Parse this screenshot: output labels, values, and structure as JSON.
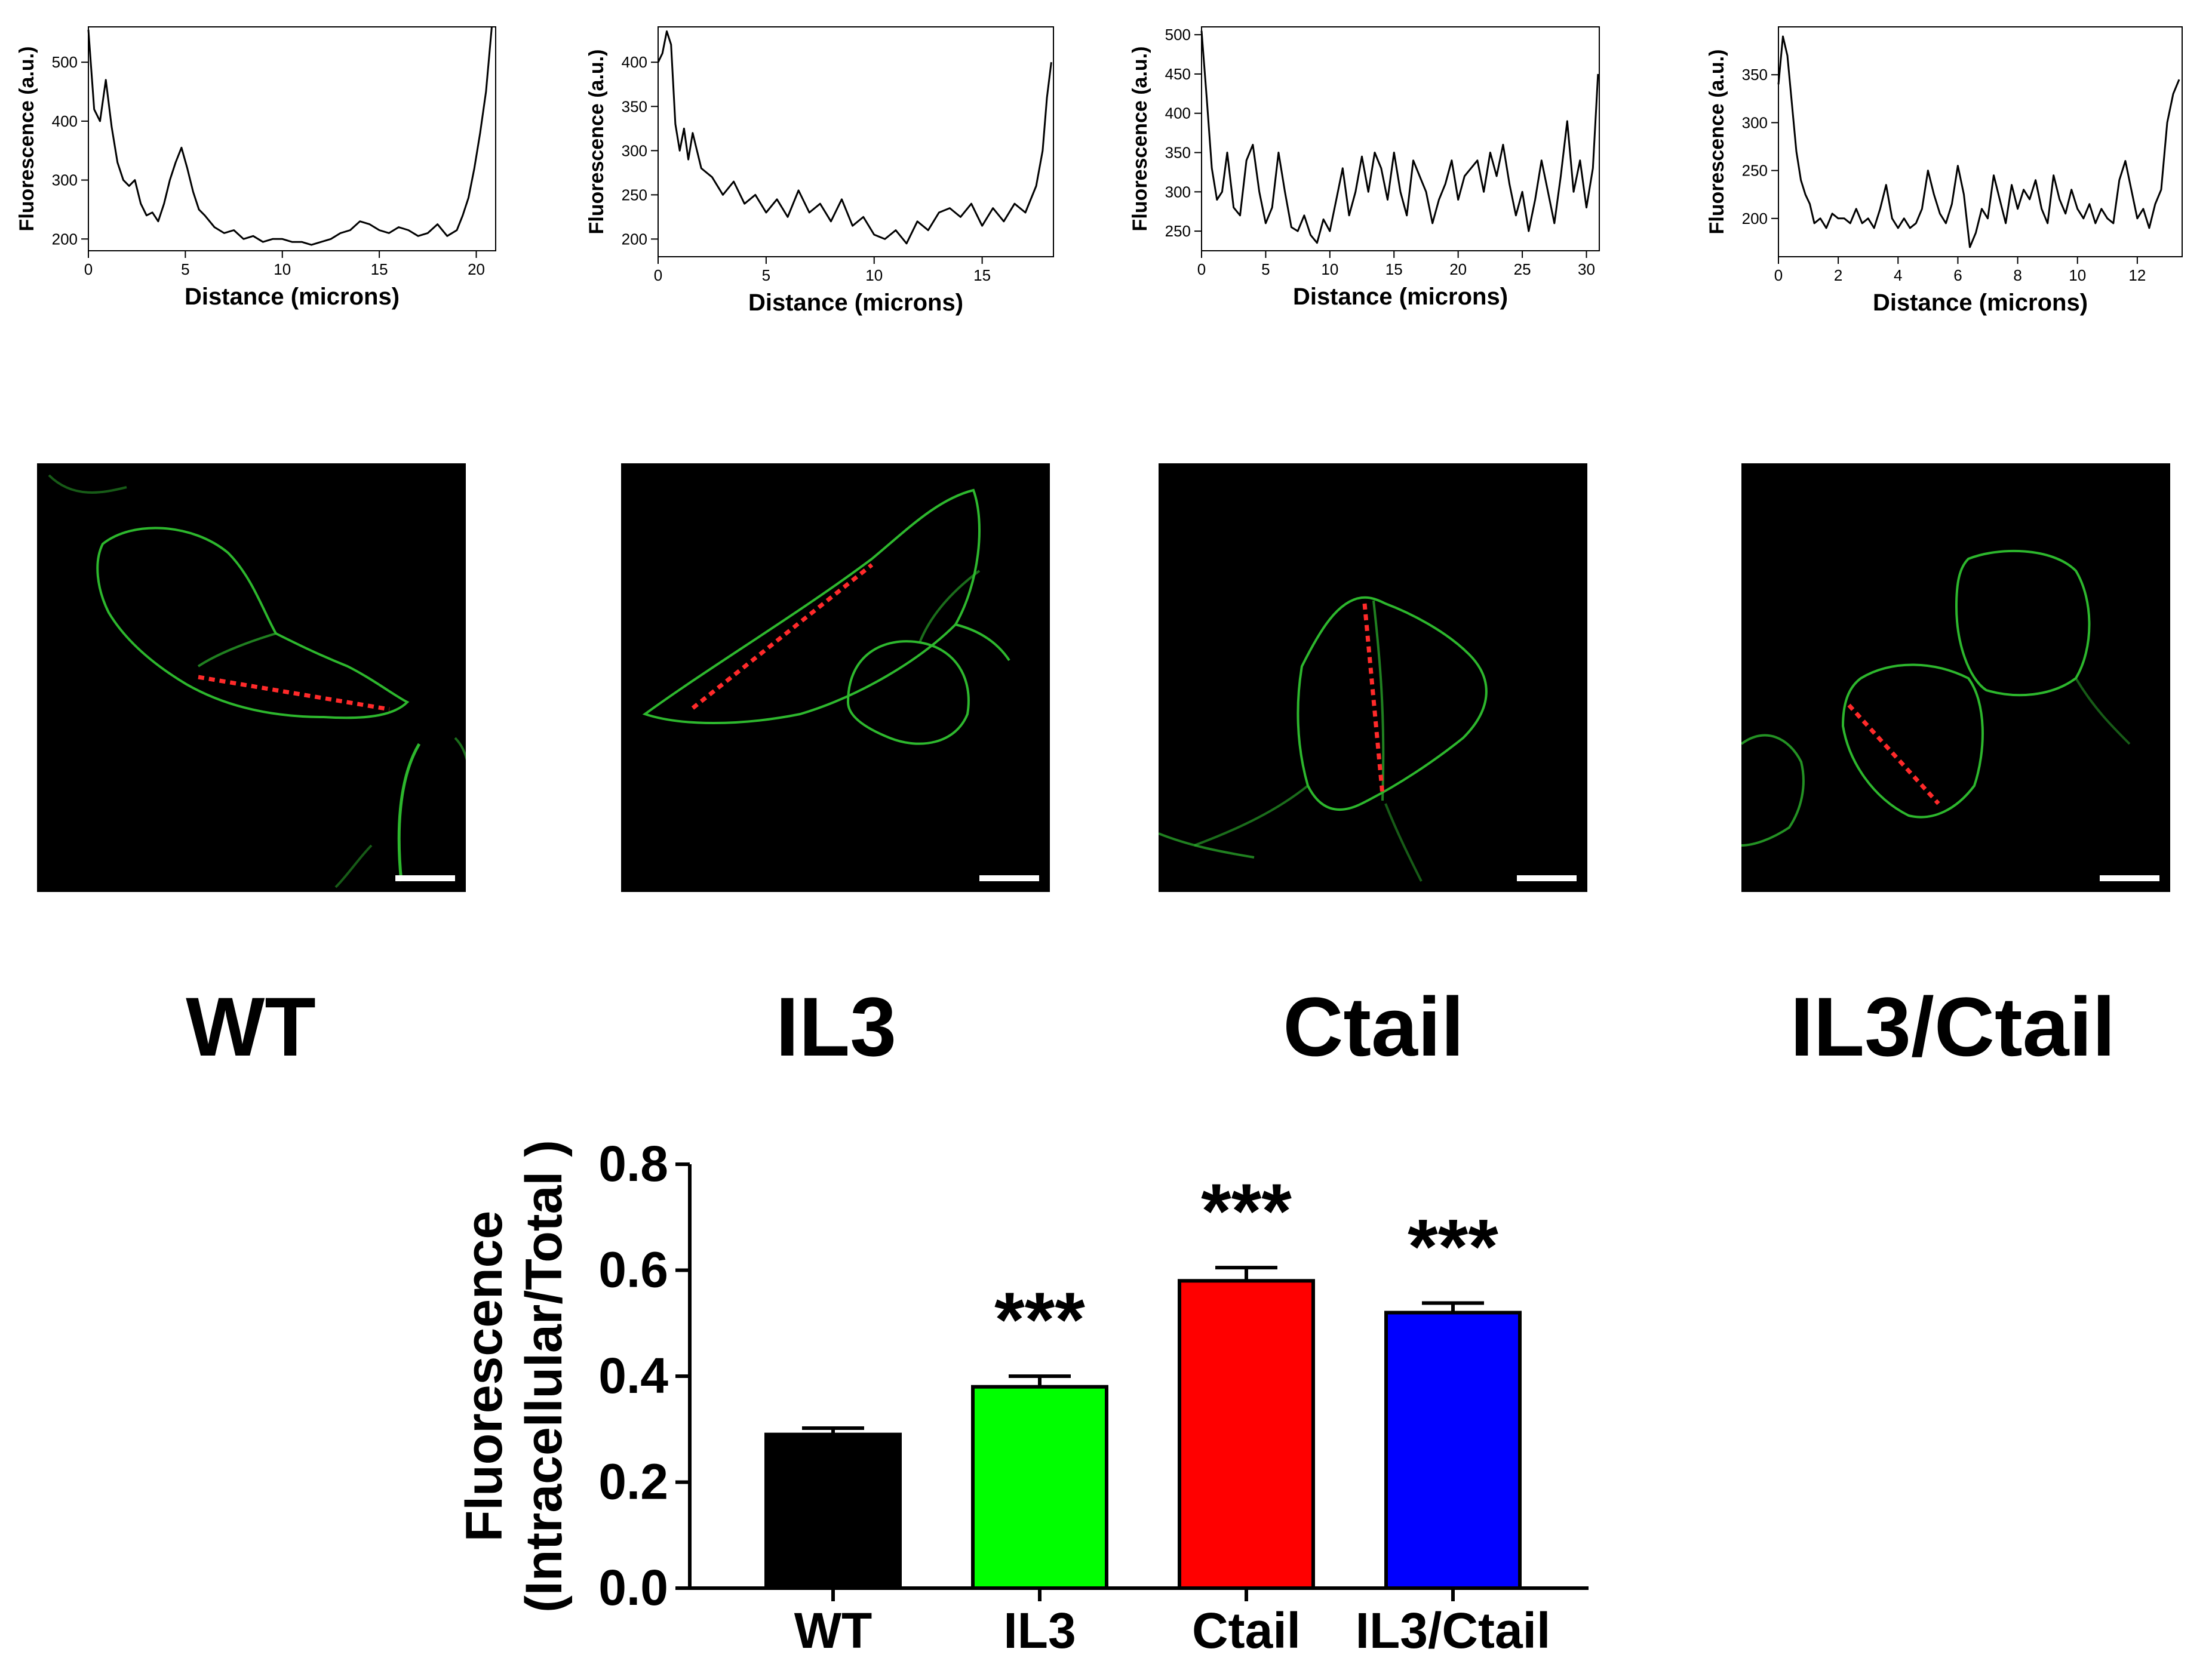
{
  "chart_data": [
    {
      "type": "line",
      "panel": "WT",
      "xlabel": "Distance (microns)",
      "ylabel": "Fluorescence (a.u.)",
      "xlim": [
        0,
        21
      ],
      "ylim": [
        180,
        560
      ],
      "xticks": [
        0,
        5,
        10,
        15,
        20
      ],
      "yticks": [
        200,
        300,
        400,
        500
      ],
      "series": [
        {
          "x": [
            0,
            0.3,
            0.6,
            0.9,
            1.2,
            1.5,
            1.8,
            2.1,
            2.4,
            2.7,
            3,
            3.3,
            3.6,
            3.9,
            4.2,
            4.5,
            4.8,
            5.1,
            5.4,
            5.7,
            6,
            6.5,
            7,
            7.5,
            8,
            8.5,
            9,
            9.5,
            10,
            10.5,
            11,
            11.5,
            12,
            12.5,
            13,
            13.5,
            14,
            14.5,
            15,
            15.5,
            16,
            16.5,
            17,
            17.5,
            18,
            18.5,
            19,
            19.3,
            19.6,
            19.9,
            20.2,
            20.5,
            20.8
          ],
          "y": [
            555,
            420,
            400,
            470,
            390,
            330,
            300,
            290,
            300,
            260,
            240,
            245,
            230,
            260,
            300,
            330,
            355,
            320,
            280,
            250,
            240,
            220,
            210,
            215,
            200,
            205,
            195,
            200,
            200,
            195,
            195,
            190,
            195,
            200,
            210,
            215,
            230,
            225,
            215,
            210,
            220,
            215,
            205,
            210,
            225,
            205,
            215,
            240,
            270,
            320,
            380,
            450,
            560
          ]
        }
      ]
    },
    {
      "type": "line",
      "panel": "IL3",
      "xlabel": "Distance (microns)",
      "ylabel": "Fluorescence (a.u.)",
      "xlim": [
        0,
        18.3
      ],
      "ylim": [
        180,
        440
      ],
      "xticks": [
        0,
        5,
        10,
        15
      ],
      "yticks": [
        200,
        250,
        300,
        350,
        400
      ],
      "series": [
        {
          "x": [
            0,
            0.2,
            0.4,
            0.6,
            0.8,
            1,
            1.2,
            1.4,
            1.6,
            1.8,
            2,
            2.5,
            3,
            3.5,
            4,
            4.5,
            5,
            5.5,
            6,
            6.5,
            7,
            7.5,
            8,
            8.5,
            9,
            9.5,
            10,
            10.5,
            11,
            11.5,
            12,
            12.5,
            13,
            13.5,
            14,
            14.5,
            15,
            15.5,
            16,
            16.5,
            17,
            17.5,
            17.8,
            18,
            18.2
          ],
          "y": [
            400,
            410,
            435,
            420,
            330,
            300,
            325,
            290,
            320,
            300,
            280,
            270,
            250,
            265,
            240,
            250,
            230,
            245,
            225,
            255,
            230,
            240,
            220,
            245,
            215,
            225,
            205,
            200,
            210,
            195,
            220,
            210,
            230,
            235,
            225,
            240,
            215,
            235,
            220,
            240,
            230,
            260,
            300,
            360,
            400
          ]
        }
      ]
    },
    {
      "type": "line",
      "panel": "Ctail",
      "xlabel": "Distance (microns)",
      "ylabel": "Fluorescence (a.u.)",
      "xlim": [
        0,
        31
      ],
      "ylim": [
        225,
        510
      ],
      "xticks": [
        0,
        5,
        10,
        15,
        20,
        25,
        30
      ],
      "yticks": [
        250,
        300,
        350,
        400,
        450,
        500
      ],
      "series": [
        {
          "x": [
            0,
            0.4,
            0.8,
            1.2,
            1.6,
            2,
            2.5,
            3,
            3.5,
            4,
            4.5,
            5,
            5.5,
            6,
            6.5,
            7,
            7.5,
            8,
            8.5,
            9,
            9.5,
            10,
            10.5,
            11,
            11.5,
            12,
            12.5,
            13,
            13.5,
            14,
            14.5,
            15,
            15.5,
            16,
            16.5,
            17,
            17.5,
            18,
            18.5,
            19,
            19.5,
            20,
            20.5,
            21,
            21.5,
            22,
            22.5,
            23,
            23.5,
            24,
            24.5,
            25,
            25.5,
            26,
            26.5,
            27,
            27.5,
            28,
            28.5,
            29,
            29.5,
            30,
            30.5,
            30.9
          ],
          "y": [
            505,
            420,
            330,
            290,
            300,
            350,
            280,
            270,
            340,
            360,
            300,
            260,
            280,
            350,
            300,
            255,
            250,
            270,
            245,
            235,
            265,
            250,
            290,
            330,
            270,
            300,
            345,
            300,
            350,
            330,
            290,
            350,
            300,
            270,
            340,
            320,
            300,
            260,
            290,
            310,
            340,
            290,
            320,
            330,
            340,
            300,
            350,
            320,
            360,
            310,
            270,
            300,
            250,
            290,
            340,
            300,
            260,
            320,
            390,
            300,
            340,
            280,
            330,
            450
          ]
        }
      ]
    },
    {
      "type": "line",
      "panel": "IL3/Ctail",
      "xlabel": "Distance (microns)",
      "ylabel": "Fluorescence (a.u.)",
      "xlim": [
        0,
        13.5
      ],
      "ylim": [
        160,
        400
      ],
      "xticks": [
        0,
        2,
        4,
        6,
        8,
        10,
        12
      ],
      "yticks": [
        200,
        250,
        300,
        350
      ],
      "series": [
        {
          "x": [
            0,
            0.15,
            0.3,
            0.45,
            0.6,
            0.75,
            0.9,
            1.05,
            1.2,
            1.4,
            1.6,
            1.8,
            2,
            2.2,
            2.4,
            2.6,
            2.8,
            3,
            3.2,
            3.4,
            3.6,
            3.8,
            4,
            4.2,
            4.4,
            4.6,
            4.8,
            5,
            5.2,
            5.4,
            5.6,
            5.8,
            6,
            6.2,
            6.4,
            6.6,
            6.8,
            7,
            7.2,
            7.4,
            7.6,
            7.8,
            8,
            8.2,
            8.4,
            8.6,
            8.8,
            9,
            9.2,
            9.4,
            9.6,
            9.8,
            10,
            10.2,
            10.4,
            10.6,
            10.8,
            11,
            11.2,
            11.4,
            11.6,
            11.8,
            12,
            12.2,
            12.4,
            12.6,
            12.8,
            13,
            13.2,
            13.4
          ],
          "y": [
            340,
            390,
            370,
            320,
            270,
            240,
            225,
            215,
            195,
            200,
            190,
            205,
            200,
            200,
            195,
            210,
            195,
            200,
            190,
            210,
            235,
            200,
            190,
            200,
            190,
            195,
            210,
            250,
            225,
            205,
            195,
            215,
            255,
            225,
            170,
            185,
            210,
            200,
            245,
            220,
            195,
            235,
            210,
            230,
            220,
            240,
            210,
            195,
            245,
            220,
            205,
            230,
            210,
            200,
            215,
            195,
            210,
            200,
            195,
            240,
            260,
            230,
            200,
            210,
            190,
            215,
            230,
            300,
            330,
            345
          ]
        }
      ]
    },
    {
      "type": "bar",
      "ylabel": "Fluorescence\n(Intracellular/Total )",
      "ylabel_line1": "Fluorescence",
      "ylabel_line2": "(Intracellular/Total )",
      "ylim": [
        0,
        0.8
      ],
      "yticks": [
        "0.0",
        "0.2",
        "0.4",
        "0.6",
        "0.8"
      ],
      "categories": [
        "WT",
        "IL3",
        "Ctail",
        "IL3/Ctail"
      ],
      "values": [
        0.29,
        0.38,
        0.58,
        0.52
      ],
      "errors": [
        0.012,
        0.02,
        0.025,
        0.018
      ],
      "colors": [
        "#000000",
        "#00ff00",
        "#ff0000",
        "#0000ff"
      ],
      "annotations": [
        "",
        "***",
        "***",
        "***"
      ]
    }
  ],
  "images": {
    "labels": [
      "WT",
      "IL3",
      "Ctail",
      "IL3/Ctail"
    ],
    "membrane_color": "#33cc33",
    "trace_color": "#ff2a2a",
    "scalebar_color": "#ffffff"
  }
}
